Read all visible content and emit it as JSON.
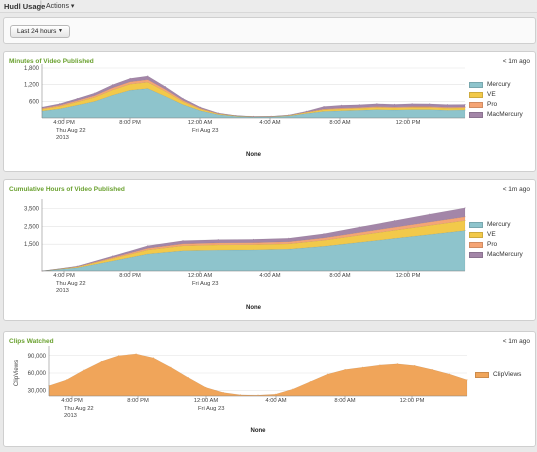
{
  "header": {
    "title": "Hudl Usage",
    "separator": "|",
    "actions_label": "Actions",
    "actions_icon": "caret-down-icon"
  },
  "filter": {
    "time_range": "Last 24 hours",
    "caret_icon": "caret-down-icon"
  },
  "panels": [
    {
      "title": "Minutes of Video Published",
      "updated": "< 1m ago",
      "legend": [
        "Mercury",
        "VE",
        "Pro",
        "MacMercury"
      ],
      "x_ticks": [
        "4:00 PM",
        "8:00 PM",
        "12:00 AM",
        "4:00 AM",
        "8:00 AM",
        "12:00 PM"
      ],
      "date_labels": [
        [
          "Thu Aug 22",
          "2013"
        ],
        [
          "Fri Aug 23"
        ]
      ],
      "xlabel": "None"
    },
    {
      "title": "Cumulative Hours of Video Published",
      "updated": "< 1m ago",
      "legend": [
        "Mercury",
        "VE",
        "Pro",
        "MacMercury"
      ],
      "x_ticks": [
        "4:00 PM",
        "8:00 PM",
        "12:00 AM",
        "4:00 AM",
        "8:00 AM",
        "12:00 PM"
      ],
      "date_labels": [
        [
          "Thu Aug 22",
          "2013"
        ],
        [
          "Fri Aug 23"
        ]
      ],
      "xlabel": "None"
    },
    {
      "title": "Clips Watched",
      "updated": "< 1m ago",
      "legend": [
        "ClipViews"
      ],
      "x_ticks": [
        "4:00 PM",
        "8:00 PM",
        "12:00 AM",
        "4:00 AM",
        "8:00 AM",
        "12:00 PM"
      ],
      "date_labels": [
        [
          "Thu Aug 22",
          "2013"
        ],
        [
          "Fri Aug 23"
        ]
      ],
      "xlabel": "None"
    }
  ],
  "colors": {
    "Mercury": "#8ec4cc",
    "VE": "#f2c94a",
    "Pro": "#f5a575",
    "MacMercury": "#a386a8",
    "ClipViews": "#f0a55a",
    "title_green": "#6aa12f"
  },
  "chart_data": [
    {
      "type": "area",
      "stacked": true,
      "title": "Minutes of Video Published",
      "xlabel": "None",
      "x": [
        "2:00 PM",
        "3:00 PM",
        "4:00 PM",
        "5:00 PM",
        "6:00 PM",
        "7:00 PM",
        "8:00 PM",
        "9:00 PM",
        "10:00 PM",
        "11:00 PM",
        "12:00 AM",
        "1:00 AM",
        "2:00 AM",
        "3:00 AM",
        "4:00 AM",
        "5:00 AM",
        "6:00 AM",
        "7:00 AM",
        "8:00 AM",
        "9:00 AM",
        "10:00 AM",
        "11:00 AM",
        "12:00 PM",
        "1:00 PM",
        "2:00 PM"
      ],
      "ylim": [
        0,
        1800
      ],
      "yticks": [
        600,
        1200,
        1800
      ],
      "ytick_labels": [
        "600",
        "1,200",
        "1,800"
      ],
      "series": [
        {
          "name": "Mercury",
          "values": [
            250,
            330,
            460,
            600,
            820,
            1000,
            1060,
            780,
            480,
            260,
            120,
            60,
            35,
            40,
            70,
            160,
            240,
            260,
            280,
            300,
            290,
            300,
            300,
            280,
            290
          ]
        },
        {
          "name": "VE",
          "values": [
            70,
            90,
            120,
            150,
            190,
            220,
            230,
            180,
            110,
            60,
            30,
            15,
            10,
            10,
            20,
            40,
            60,
            70,
            70,
            80,
            75,
            80,
            80,
            75,
            75
          ]
        },
        {
          "name": "Pro",
          "values": [
            30,
            40,
            50,
            60,
            75,
            85,
            90,
            70,
            45,
            25,
            12,
            6,
            5,
            5,
            8,
            15,
            25,
            28,
            30,
            32,
            30,
            32,
            32,
            30,
            30
          ]
        },
        {
          "name": "MacMercury",
          "values": [
            40,
            55,
            70,
            90,
            110,
            120,
            130,
            100,
            70,
            40,
            20,
            10,
            8,
            8,
            12,
            30,
            90,
            100,
            95,
            100,
            95,
            100,
            95,
            95,
            90
          ]
        }
      ]
    },
    {
      "type": "area",
      "stacked": true,
      "title": "Cumulative Hours of Video Published",
      "xlabel": "None",
      "x": [
        "2:00 PM",
        "4:00 PM",
        "6:00 PM",
        "8:00 PM",
        "10:00 PM",
        "12:00 AM",
        "2:00 AM",
        "4:00 AM",
        "6:00 AM",
        "8:00 AM",
        "10:00 AM",
        "12:00 PM",
        "2:00 PM"
      ],
      "ylim": [
        0,
        3800
      ],
      "yticks": [
        1500,
        2500,
        3500
      ],
      "ytick_labels": [
        "1,500",
        "2,500",
        "3,500"
      ],
      "series": [
        {
          "name": "Mercury",
          "values": [
            0,
            180,
            560,
            950,
            1130,
            1170,
            1180,
            1220,
            1380,
            1600,
            1820,
            2040,
            2260
          ]
        },
        {
          "name": "VE",
          "values": [
            0,
            45,
            140,
            230,
            280,
            290,
            292,
            300,
            340,
            400,
            455,
            510,
            560
          ]
        },
        {
          "name": "Pro",
          "values": [
            0,
            20,
            55,
            90,
            110,
            115,
            116,
            118,
            132,
            150,
            170,
            190,
            210
          ]
        },
        {
          "name": "MacMercury",
          "values": [
            0,
            25,
            80,
            140,
            175,
            180,
            182,
            190,
            230,
            300,
            370,
            440,
            500
          ]
        }
      ]
    },
    {
      "type": "area",
      "title": "Clips Watched",
      "xlabel": "None",
      "ylabel": "ClipViews",
      "x": [
        "2:00 PM",
        "3:00 PM",
        "4:00 PM",
        "5:00 PM",
        "6:00 PM",
        "7:00 PM",
        "8:00 PM",
        "9:00 PM",
        "10:00 PM",
        "11:00 PM",
        "12:00 AM",
        "1:00 AM",
        "2:00 AM",
        "3:00 AM",
        "4:00 AM",
        "5:00 AM",
        "6:00 AM",
        "7:00 AM",
        "8:00 AM",
        "9:00 AM",
        "10:00 AM",
        "11:00 AM",
        "12:00 PM",
        "1:00 PM",
        "2:00 PM"
      ],
      "ylim": [
        20000,
        100000
      ],
      "yticks": [
        30000,
        60000,
        90000
      ],
      "ytick_labels": [
        "30,000",
        "60,000",
        "90,000"
      ],
      "series": [
        {
          "name": "ClipViews",
          "values": [
            38000,
            48000,
            65000,
            80000,
            90000,
            93000,
            86000,
            70000,
            52000,
            35000,
            26000,
            22000,
            21500,
            23000,
            32000,
            45000,
            58000,
            66000,
            70000,
            74000,
            76000,
            73000,
            66000,
            58000,
            48000
          ]
        }
      ]
    }
  ]
}
